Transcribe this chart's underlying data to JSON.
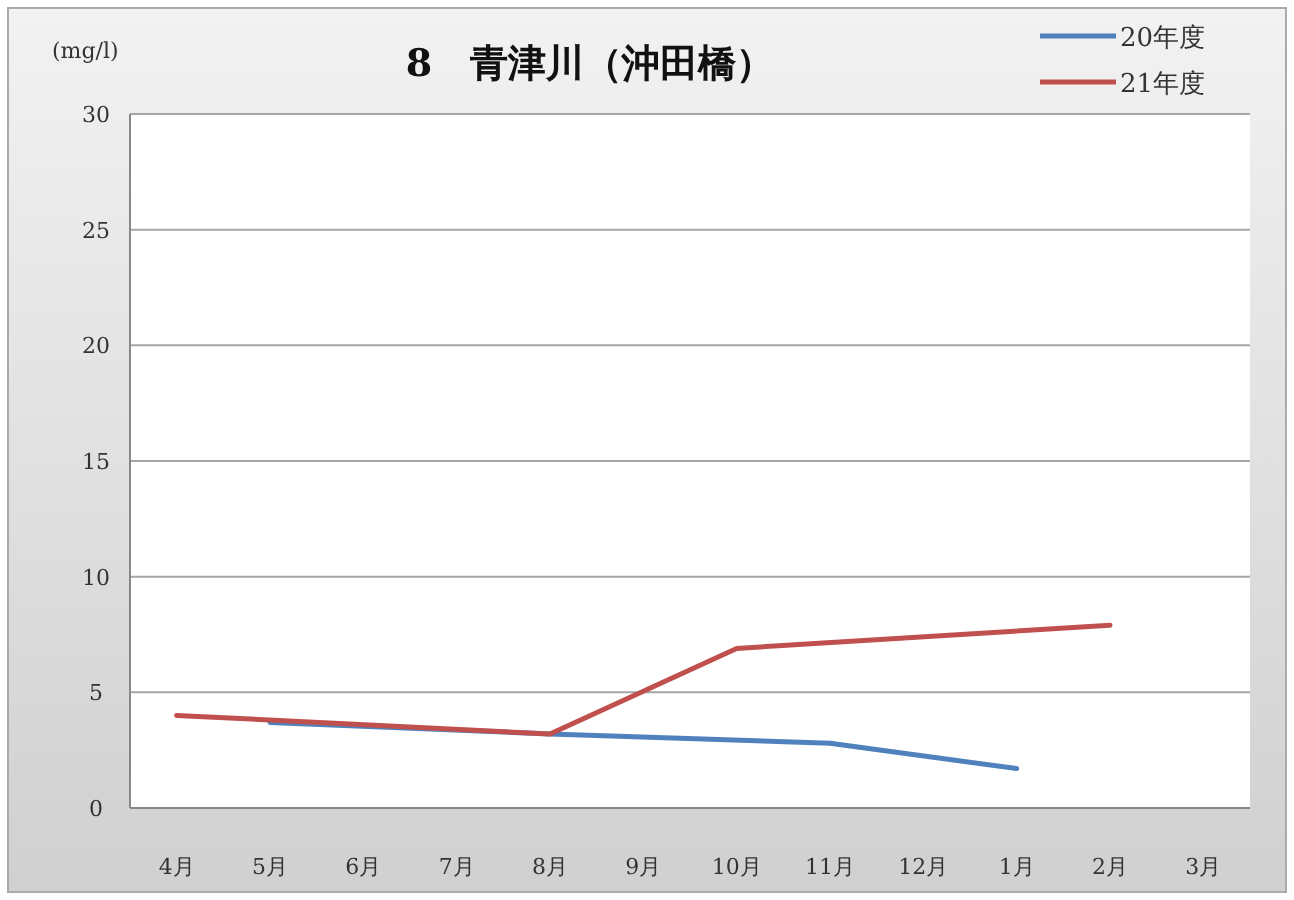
{
  "chart_data": {
    "type": "line",
    "title": "8　青津川（沖田橋）",
    "ylabel": "(mg/l)",
    "categories": [
      "4月",
      "5月",
      "6月",
      "7月",
      "8月",
      "9月",
      "10月",
      "11月",
      "12月",
      "1月",
      "2月",
      "3月"
    ],
    "series": [
      {
        "name": "20年度",
        "color": "#4f81bd",
        "values": [
          null,
          3.7,
          null,
          null,
          3.2,
          null,
          null,
          2.8,
          null,
          1.7,
          null,
          null
        ]
      },
      {
        "name": "21年度",
        "color": "#c0504d",
        "values": [
          4.0,
          null,
          null,
          null,
          3.2,
          null,
          6.9,
          null,
          null,
          null,
          7.9,
          null
        ]
      }
    ],
    "ylim": [
      0,
      30
    ],
    "yticks": [
      0,
      5,
      10,
      15,
      20,
      25,
      30
    ],
    "grid": "y",
    "legend": "top right"
  }
}
